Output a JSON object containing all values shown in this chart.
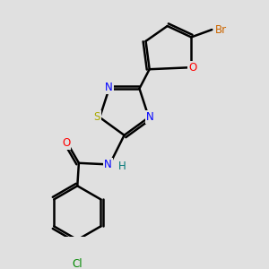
{
  "bg_color": "#e0e0e0",
  "bond_color": "#000000",
  "bond_width": 1.8,
  "atom_colors": {
    "C": "#000000",
    "N": "#0000ff",
    "O": "#ff0000",
    "S": "#aaaa00",
    "Br": "#cc6600",
    "Cl": "#008800",
    "H": "#007777"
  },
  "font_size": 8.5
}
